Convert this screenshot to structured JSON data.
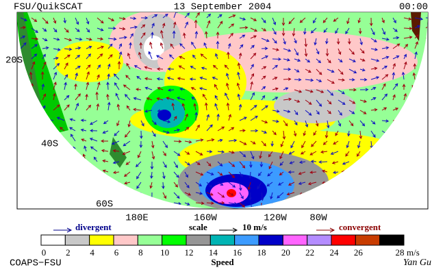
{
  "header": {
    "source": "FSU/QuikSCAT",
    "date": "13 September 2004",
    "time": "00:00"
  },
  "map": {
    "lat_labels": [
      "20S",
      "40S",
      "60S"
    ],
    "lon_labels": [
      "180E",
      "160W",
      "120W",
      "80W"
    ]
  },
  "legend": {
    "divergent": "divergent",
    "scale": "scale",
    "scale_value": "10 m/s",
    "convergent": "convergent"
  },
  "colorbar": {
    "colors": [
      "#ffffff",
      "#c8c8c8",
      "#ffff00",
      "#ffc8c8",
      "#96ff96",
      "#00ff00",
      "#969696",
      "#00b4b4",
      "#3c9bff",
      "#0000c8",
      "#ff64ff",
      "#b48cff",
      "#ff0000",
      "#c83c00",
      "#000000"
    ],
    "ticks": [
      0,
      2,
      4,
      6,
      8,
      10,
      12,
      14,
      16,
      18,
      20,
      22,
      24,
      26,
      28
    ],
    "unit": "m/s",
    "label": "Speed"
  },
  "footer": {
    "credit": "COAPS−FSU",
    "author": "Yan Gu"
  }
}
